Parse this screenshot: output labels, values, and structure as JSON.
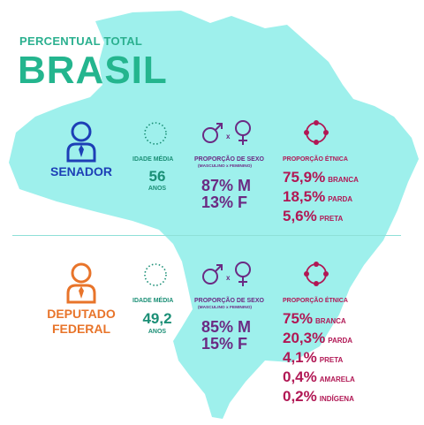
{
  "header": {
    "kicker": "PERCENTUAL TOTAL",
    "title": "BRASIL"
  },
  "colors": {
    "map": "#9ef0ec",
    "title_green": "#24b58e",
    "senador_blue": "#1d3fb6",
    "deputado_orange": "#e8742a",
    "teal": "#1b8f76",
    "purple": "#6b2a83",
    "crimson": "#b11754"
  },
  "icons": {
    "person": "person-with-tie-icon",
    "age": "dotted-circle-icon",
    "sex": "male-female-symbols-icon",
    "ethnic": "circle-with-dots-icon"
  },
  "senador": {
    "role": "SENADOR",
    "idade_label": "IDADE MÉDIA",
    "idade_value": "56",
    "idade_unit": "ANOS",
    "sexo_label": "PROPORÇÃO DE SEXO",
    "sexo_sublabel": "(MASCULINO x FEMININO)",
    "sexo_m": "87% M",
    "sexo_f": "13% F",
    "etnica_label": "PROPORÇÃO ÉTNICA",
    "etnica": [
      {
        "value": "75,9%",
        "name": "BRANCA"
      },
      {
        "value": "18,5%",
        "name": "PARDA"
      },
      {
        "value": "5,6%",
        "name": "PRETA"
      }
    ]
  },
  "deputado": {
    "role_line1": "DEPUTADO",
    "role_line2": "FEDERAL",
    "idade_label": "IDADE MÉDIA",
    "idade_value": "49,2",
    "idade_unit": "ANOS",
    "sexo_label": "PROPORÇÃO DE SEXO",
    "sexo_sublabel": "(MASCULINO x FEMININO)",
    "sexo_m": "85% M",
    "sexo_f": "15% F",
    "etnica_label": "PROPORÇÃO ÉTNICA",
    "etnica": [
      {
        "value": "75%",
        "name": "BRANCA"
      },
      {
        "value": "20,3%",
        "name": "PARDA"
      },
      {
        "value": "4,1%",
        "name": "PRETA"
      },
      {
        "value": "0,4%",
        "name": "AMARELA"
      },
      {
        "value": "0,2%",
        "name": "INDÍGENA"
      }
    ]
  }
}
